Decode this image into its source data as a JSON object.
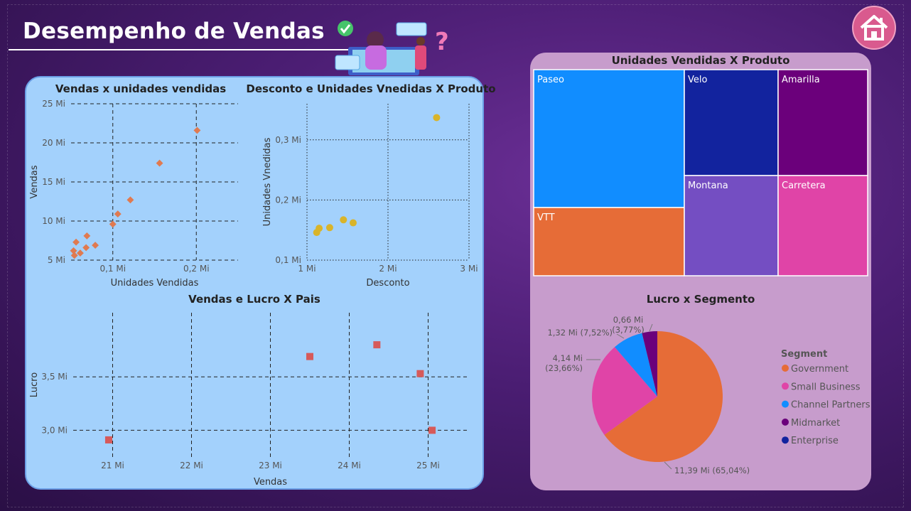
{
  "header": {
    "title": "Desempenho de Vendas"
  },
  "colors": {
    "scatter_orange": "#e07a50",
    "scatter_yellow": "#d9b42a",
    "square_red": "#d65a5a",
    "panel_left": "#a3d1fc",
    "panel_right": "#c79ccc"
  },
  "icons": [
    "home-icon"
  ],
  "chart_data": [
    {
      "type": "scatter",
      "title": "Vendas x unidades vendidas",
      "xlabel": "Unidades Vendidas",
      "ylabel": "Vendas",
      "xlim": [
        0.05,
        0.25
      ],
      "ylim": [
        5,
        25
      ],
      "xticks": [
        0.1,
        0.2
      ],
      "xtick_labels": [
        "0,1 Mi",
        "0,2 Mi"
      ],
      "yticks": [
        5,
        10,
        15,
        20,
        25
      ],
      "ytick_labels": [
        "5 Mi",
        "10 Mi",
        "15 Mi",
        "20 Mi",
        "25 Mi"
      ],
      "points": [
        {
          "x": 0.053,
          "y": 6.2
        },
        {
          "x": 0.054,
          "y": 5.6
        },
        {
          "x": 0.056,
          "y": 7.3
        },
        {
          "x": 0.061,
          "y": 5.9
        },
        {
          "x": 0.068,
          "y": 6.6
        },
        {
          "x": 0.069,
          "y": 8.1
        },
        {
          "x": 0.079,
          "y": 6.9
        },
        {
          "x": 0.1,
          "y": 9.6
        },
        {
          "x": 0.106,
          "y": 10.9
        },
        {
          "x": 0.121,
          "y": 12.7
        },
        {
          "x": 0.156,
          "y": 17.4
        },
        {
          "x": 0.201,
          "y": 21.6
        }
      ]
    },
    {
      "type": "scatter",
      "title": "Desconto e Unidades Vnedidas X Produto",
      "xlabel": "Desconto",
      "ylabel": "Unidades Vnedidas",
      "xlim": [
        1,
        3
      ],
      "ylim": [
        0.1,
        0.36
      ],
      "xticks": [
        1,
        2,
        3
      ],
      "xtick_labels": [
        "1 Mi",
        "2 Mi",
        "3 Mi"
      ],
      "yticks": [
        0.1,
        0.2,
        0.3
      ],
      "ytick_labels": [
        "0,1 Mi",
        "0,2 Mi",
        "0,3 Mi"
      ],
      "points": [
        {
          "x": 1.12,
          "y": 0.146
        },
        {
          "x": 1.15,
          "y": 0.153
        },
        {
          "x": 1.28,
          "y": 0.154
        },
        {
          "x": 1.45,
          "y": 0.167
        },
        {
          "x": 1.57,
          "y": 0.162
        },
        {
          "x": 2.6,
          "y": 0.337
        }
      ]
    },
    {
      "type": "scatter",
      "title": "Vendas e Lucro X Pais",
      "xlabel": "Vendas",
      "ylabel": "Lucro",
      "xlim": [
        20.5,
        25.5
      ],
      "ylim": [
        2.75,
        4.1
      ],
      "xticks": [
        21,
        22,
        23,
        24,
        25
      ],
      "xtick_labels": [
        "21 Mi",
        "22 Mi",
        "23 Mi",
        "24 Mi",
        "25 Mi"
      ],
      "yticks": [
        3.0,
        3.5
      ],
      "ytick_labels": [
        "3,0 Mi",
        "3,5 Mi"
      ],
      "points": [
        {
          "x": 20.95,
          "y": 2.91
        },
        {
          "x": 23.5,
          "y": 3.69
        },
        {
          "x": 24.35,
          "y": 3.8
        },
        {
          "x": 24.9,
          "y": 3.53
        },
        {
          "x": 25.05,
          "y": 3.0
        }
      ]
    },
    {
      "type": "treemap",
      "title": "Unidades Vendidas X Produto",
      "items": [
        {
          "name": "Paseo",
          "value": 0.338,
          "color": "#118dff"
        },
        {
          "name": "VTT",
          "value": 0.168,
          "color": "#e66c37"
        },
        {
          "name": "Velo",
          "value": 0.162,
          "color": "#12239e"
        },
        {
          "name": "Amarilla",
          "value": 0.155,
          "color": "#6b007b"
        },
        {
          "name": "Montana",
          "value": 0.154,
          "color": "#744ec2"
        },
        {
          "name": "Carretera",
          "value": 0.146,
          "color": "#e044a7"
        }
      ]
    },
    {
      "type": "pie",
      "title": "Lucro x Segmento",
      "legend_title": "Segment",
      "legend_position": "right",
      "slices": [
        {
          "name": "Government",
          "value": 11.39,
          "pct": 65.04,
          "label_line1": "11,39 Mi (65,04%)",
          "label_line2": "",
          "color": "#e66c37"
        },
        {
          "name": "Small Business",
          "value": 4.14,
          "pct": 23.66,
          "label_line1": "4,14 Mi",
          "label_line2": "(23,66%)",
          "color": "#e044a7"
        },
        {
          "name": "Channel Partners",
          "value": 1.32,
          "pct": 7.52,
          "label_line1": "1,32 Mi (7,52%)",
          "label_line2": "",
          "color": "#118dff"
        },
        {
          "name": "Midmarket",
          "value": 0.66,
          "pct": 3.77,
          "label_line1": "0,66 Mi",
          "label_line2": "(3,77%)",
          "color": "#6b007b"
        },
        {
          "name": "Enterprise",
          "value": 0.0,
          "pct": 0.0,
          "label_line1": "",
          "label_line2": "",
          "color": "#12239e"
        }
      ]
    }
  ]
}
